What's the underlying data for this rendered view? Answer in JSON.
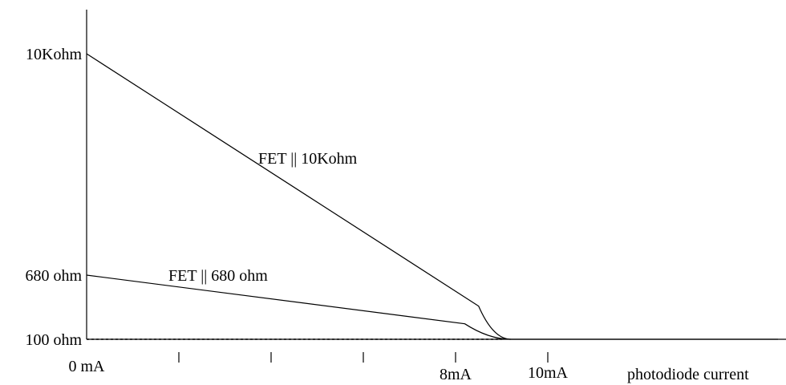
{
  "chart_data": {
    "type": "line",
    "xlabel": "photodiode current",
    "ylabel": "",
    "x_ticks": [
      {
        "x": 0,
        "label": "0 mA"
      },
      {
        "x": 2,
        "label": ""
      },
      {
        "x": 4,
        "label": ""
      },
      {
        "x": 6,
        "label": ""
      },
      {
        "x": 8,
        "label": "8mA"
      },
      {
        "x": 10,
        "label": "10mA"
      }
    ],
    "y_labels": [
      {
        "y": 10000,
        "label": "10Kohm"
      },
      {
        "y": 680,
        "label": "680 ohm"
      },
      {
        "y": 100,
        "label": "100 ohm"
      }
    ],
    "series": [
      {
        "name": "FET || 10Kohm",
        "style": "solid",
        "points": [
          [
            0,
            10000
          ],
          [
            8.5,
            400
          ],
          [
            9.2,
            100
          ],
          [
            15.6,
            100
          ]
        ]
      },
      {
        "name": "FET || 680 ohm",
        "style": "solid",
        "points": [
          [
            0,
            680
          ],
          [
            8.2,
            240
          ],
          [
            9.2,
            100
          ]
        ]
      },
      {
        "name": "",
        "style": "dashed",
        "points": [
          [
            0,
            100
          ],
          [
            9.0,
            100
          ]
        ]
      }
    ],
    "colors": {
      "line": "#000000",
      "background": "#ffffff"
    }
  }
}
